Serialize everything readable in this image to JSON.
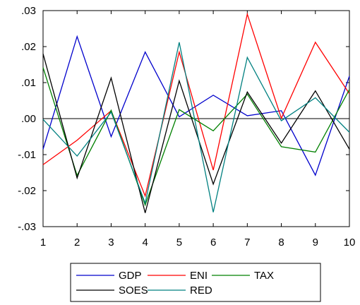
{
  "chart_data": {
    "type": "line",
    "x": [
      1,
      2,
      3,
      4,
      5,
      6,
      7,
      8,
      9,
      10
    ],
    "x_tick_labels": [
      "1",
      "2",
      "3",
      "4",
      "5",
      "6",
      "7",
      "8",
      "9",
      "10"
    ],
    "ylim": [
      -0.03,
      0.03
    ],
    "y_ticks": [
      -0.03,
      -0.02,
      -0.01,
      0.0,
      0.01,
      0.02,
      0.03
    ],
    "y_tick_labels": [
      "-.03",
      "-.02",
      "-.01",
      ".00",
      ".01",
      ".02",
      ".03"
    ],
    "zero_line": true,
    "grid": false,
    "legend_position": "bottom",
    "series": [
      {
        "name": "GDP",
        "color": "#0000cc",
        "values": [
          -0.0085,
          0.0228,
          -0.005,
          0.0185,
          0.0005,
          0.0065,
          0.0008,
          0.0022,
          -0.0157,
          0.0118
        ]
      },
      {
        "name": "ENI",
        "color": "#ff0000",
        "values": [
          -0.0128,
          -0.006,
          0.0022,
          -0.0215,
          0.0185,
          -0.0143,
          0.029,
          0.0001,
          0.0212,
          0.0069
        ]
      },
      {
        "name": "TAX",
        "color": "#008000",
        "values": [
          0.0142,
          -0.0158,
          0.0023,
          -0.024,
          0.0025,
          -0.0034,
          0.0068,
          -0.0078,
          -0.0093,
          0.0081
        ]
      },
      {
        "name": "SOES",
        "color": "#000000",
        "values": [
          0.018,
          -0.0165,
          0.0113,
          -0.0262,
          0.0105,
          -0.0182,
          0.0074,
          -0.0068,
          0.0077,
          -0.0085
        ]
      },
      {
        "name": "RED",
        "color": "#008080",
        "values": [
          -0.0002,
          -0.0104,
          0.0018,
          -0.0235,
          0.0212,
          -0.026,
          0.017,
          -0.0006,
          0.0058,
          -0.0038
        ]
      }
    ]
  }
}
